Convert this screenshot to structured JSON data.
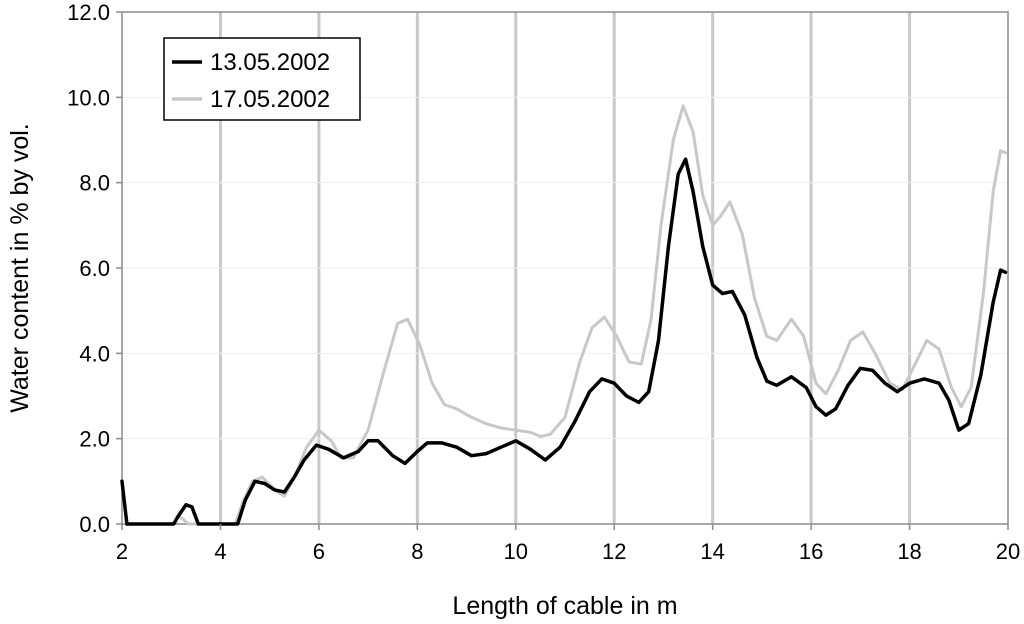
{
  "chart_data": {
    "type": "line",
    "title": "",
    "xlabel": "Length of cable in m",
    "ylabel": "Water content in % by vol.",
    "xlim": [
      2,
      20
    ],
    "ylim": [
      0,
      12
    ],
    "x_ticks": [
      "2",
      "4",
      "6",
      "8",
      "10",
      "12",
      "14",
      "16",
      "18",
      "20"
    ],
    "y_ticks": [
      "0.0",
      "2.0",
      "4.0",
      "6.0",
      "8.0",
      "10.0",
      "12.0"
    ],
    "grid": "vertical major gridlines",
    "legend_position": "top-left",
    "series": [
      {
        "name": "13.05.2002",
        "color": "#000000",
        "points": [
          [
            2.0,
            1.0
          ],
          [
            2.1,
            0.0
          ],
          [
            3.05,
            0.0
          ],
          [
            3.15,
            0.2
          ],
          [
            3.3,
            0.45
          ],
          [
            3.42,
            0.4
          ],
          [
            3.55,
            0.0
          ],
          [
            4.35,
            0.0
          ],
          [
            4.5,
            0.55
          ],
          [
            4.7,
            1.0
          ],
          [
            4.9,
            0.95
          ],
          [
            5.1,
            0.8
          ],
          [
            5.3,
            0.75
          ],
          [
            5.5,
            1.1
          ],
          [
            5.7,
            1.5
          ],
          [
            5.95,
            1.85
          ],
          [
            6.2,
            1.75
          ],
          [
            6.5,
            1.55
          ],
          [
            6.8,
            1.7
          ],
          [
            7.0,
            1.95
          ],
          [
            7.2,
            1.95
          ],
          [
            7.5,
            1.6
          ],
          [
            7.75,
            1.42
          ],
          [
            8.0,
            1.7
          ],
          [
            8.2,
            1.9
          ],
          [
            8.5,
            1.9
          ],
          [
            8.8,
            1.8
          ],
          [
            9.1,
            1.6
          ],
          [
            9.4,
            1.65
          ],
          [
            9.7,
            1.8
          ],
          [
            10.0,
            1.95
          ],
          [
            10.3,
            1.75
          ],
          [
            10.6,
            1.5
          ],
          [
            10.9,
            1.8
          ],
          [
            11.2,
            2.4
          ],
          [
            11.5,
            3.1
          ],
          [
            11.75,
            3.4
          ],
          [
            12.0,
            3.3
          ],
          [
            12.25,
            3.0
          ],
          [
            12.5,
            2.85
          ],
          [
            12.7,
            3.1
          ],
          [
            12.9,
            4.3
          ],
          [
            13.1,
            6.5
          ],
          [
            13.3,
            8.2
          ],
          [
            13.45,
            8.55
          ],
          [
            13.6,
            7.8
          ],
          [
            13.8,
            6.5
          ],
          [
            14.0,
            5.6
          ],
          [
            14.2,
            5.4
          ],
          [
            14.4,
            5.45
          ],
          [
            14.65,
            4.9
          ],
          [
            14.9,
            3.9
          ],
          [
            15.1,
            3.35
          ],
          [
            15.3,
            3.25
          ],
          [
            15.6,
            3.45
          ],
          [
            15.9,
            3.2
          ],
          [
            16.1,
            2.75
          ],
          [
            16.3,
            2.55
          ],
          [
            16.5,
            2.7
          ],
          [
            16.75,
            3.25
          ],
          [
            17.0,
            3.65
          ],
          [
            17.25,
            3.6
          ],
          [
            17.5,
            3.3
          ],
          [
            17.75,
            3.1
          ],
          [
            18.0,
            3.3
          ],
          [
            18.3,
            3.4
          ],
          [
            18.6,
            3.3
          ],
          [
            18.8,
            2.9
          ],
          [
            19.0,
            2.2
          ],
          [
            19.2,
            2.35
          ],
          [
            19.45,
            3.5
          ],
          [
            19.7,
            5.2
          ],
          [
            19.85,
            5.95
          ],
          [
            19.95,
            5.9
          ]
        ]
      },
      {
        "name": "17.05.2002",
        "color": "#c8c8c8",
        "points": [
          [
            3.05,
            0.0
          ],
          [
            3.15,
            0.2
          ],
          [
            3.25,
            0.1
          ],
          [
            3.35,
            0.0
          ],
          [
            4.3,
            0.0
          ],
          [
            4.45,
            0.5
          ],
          [
            4.65,
            1.0
          ],
          [
            4.85,
            1.1
          ],
          [
            5.1,
            0.8
          ],
          [
            5.3,
            0.65
          ],
          [
            5.5,
            1.1
          ],
          [
            5.75,
            1.8
          ],
          [
            6.0,
            2.2
          ],
          [
            6.25,
            1.95
          ],
          [
            6.45,
            1.55
          ],
          [
            6.7,
            1.55
          ],
          [
            7.0,
            2.2
          ],
          [
            7.3,
            3.5
          ],
          [
            7.6,
            4.7
          ],
          [
            7.8,
            4.8
          ],
          [
            8.05,
            4.2
          ],
          [
            8.3,
            3.3
          ],
          [
            8.55,
            2.8
          ],
          [
            8.8,
            2.7
          ],
          [
            9.1,
            2.5
          ],
          [
            9.4,
            2.35
          ],
          [
            9.7,
            2.25
          ],
          [
            10.0,
            2.2
          ],
          [
            10.3,
            2.15
          ],
          [
            10.5,
            2.05
          ],
          [
            10.7,
            2.1
          ],
          [
            11.0,
            2.5
          ],
          [
            11.3,
            3.8
          ],
          [
            11.55,
            4.6
          ],
          [
            11.8,
            4.85
          ],
          [
            12.05,
            4.4
          ],
          [
            12.3,
            3.8
          ],
          [
            12.55,
            3.75
          ],
          [
            12.75,
            4.8
          ],
          [
            12.95,
            7.0
          ],
          [
            13.2,
            9.0
          ],
          [
            13.4,
            9.8
          ],
          [
            13.6,
            9.2
          ],
          [
            13.8,
            7.7
          ],
          [
            14.0,
            7.0
          ],
          [
            14.15,
            7.2
          ],
          [
            14.35,
            7.55
          ],
          [
            14.6,
            6.8
          ],
          [
            14.85,
            5.3
          ],
          [
            15.1,
            4.4
          ],
          [
            15.3,
            4.3
          ],
          [
            15.6,
            4.8
          ],
          [
            15.85,
            4.4
          ],
          [
            16.1,
            3.3
          ],
          [
            16.3,
            3.05
          ],
          [
            16.55,
            3.6
          ],
          [
            16.8,
            4.3
          ],
          [
            17.05,
            4.5
          ],
          [
            17.3,
            4.0
          ],
          [
            17.6,
            3.3
          ],
          [
            17.85,
            3.15
          ],
          [
            18.05,
            3.6
          ],
          [
            18.35,
            4.3
          ],
          [
            18.6,
            4.1
          ],
          [
            18.85,
            3.2
          ],
          [
            19.05,
            2.75
          ],
          [
            19.25,
            3.2
          ],
          [
            19.5,
            5.4
          ],
          [
            19.7,
            7.8
          ],
          [
            19.85,
            8.75
          ],
          [
            19.95,
            8.7
          ]
        ]
      }
    ]
  }
}
